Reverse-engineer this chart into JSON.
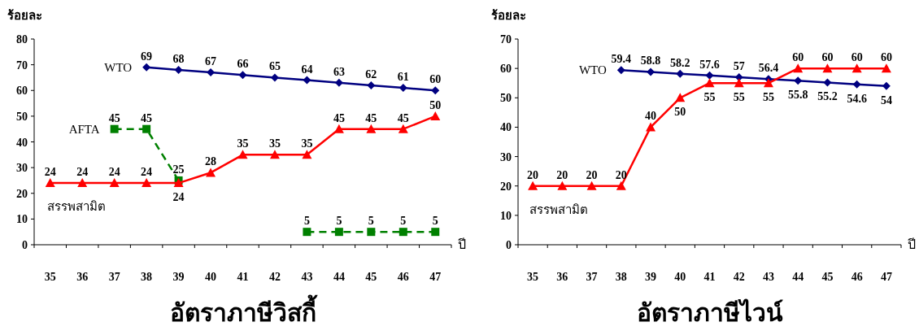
{
  "chart_data": [
    {
      "type": "line",
      "title": "อัตราภาษีวิสกี้",
      "xlabel": "ปี",
      "ylabel": "ร้อยละ",
      "categories": [
        "35",
        "36",
        "37",
        "38",
        "39",
        "40",
        "41",
        "42",
        "43",
        "44",
        "45",
        "46",
        "47"
      ],
      "ylim": [
        0,
        80
      ],
      "yticks": [
        0,
        10,
        20,
        30,
        40,
        50,
        60,
        70,
        80
      ],
      "data_labels": true,
      "series": [
        {
          "name": "WTO",
          "color": "#000080",
          "marker": "diamond",
          "line_style": "solid",
          "values": [
            null,
            null,
            null,
            69,
            68,
            67,
            66,
            65,
            64,
            63,
            62,
            61,
            60
          ]
        },
        {
          "name": "AFTA",
          "color": "#008000",
          "marker": "square",
          "line_style": "dashed",
          "values": [
            null,
            null,
            45,
            45,
            25,
            null,
            null,
            null,
            5,
            5,
            5,
            5,
            5
          ]
        },
        {
          "name": "สรรพสามิต",
          "color": "#ff0000",
          "marker": "triangle",
          "line_style": "solid",
          "values": [
            24,
            24,
            24,
            24,
            24,
            28,
            35,
            35,
            35,
            45,
            45,
            45,
            50
          ]
        }
      ]
    },
    {
      "type": "line",
      "title": "อัตราภาษีไวน์",
      "xlabel": "ปี",
      "ylabel": "ร้อยละ",
      "categories": [
        "35",
        "36",
        "37",
        "38",
        "39",
        "40",
        "41",
        "42",
        "43",
        "44",
        "45",
        "46",
        "47"
      ],
      "ylim": [
        0,
        70
      ],
      "yticks": [
        0,
        10,
        20,
        30,
        40,
        50,
        60,
        70
      ],
      "data_labels": true,
      "series": [
        {
          "name": "WTO",
          "color": "#000080",
          "marker": "diamond",
          "line_style": "solid",
          "values": [
            null,
            null,
            null,
            59.4,
            58.8,
            58.2,
            57.6,
            57,
            56.4,
            55.8,
            55.2,
            54.6,
            54
          ]
        },
        {
          "name": "สรรพสามิต",
          "color": "#ff0000",
          "marker": "triangle",
          "line_style": "solid",
          "values": [
            20,
            20,
            20,
            20,
            40,
            50,
            55,
            55,
            55,
            60,
            60,
            60,
            60
          ]
        }
      ]
    }
  ]
}
